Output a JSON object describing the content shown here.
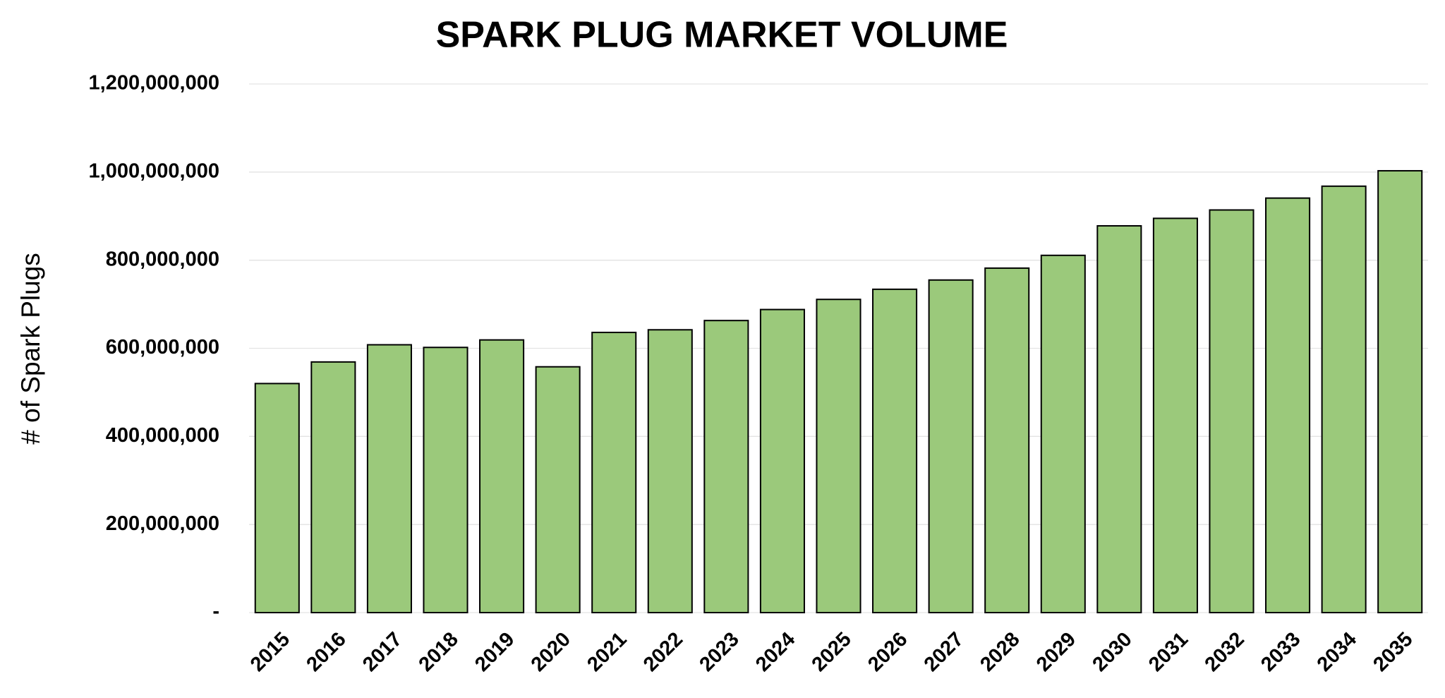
{
  "chart_data": {
    "type": "bar",
    "title": "SPARK PLUG MARKET VOLUME",
    "y_label": "# of Spark Plugs",
    "categories": [
      "2015",
      "2016",
      "2017",
      "2018",
      "2019",
      "2020",
      "2021",
      "2022",
      "2023",
      "2024",
      "2025",
      "2026",
      "2027",
      "2028",
      "2029",
      "2030",
      "2031",
      "2032",
      "2033",
      "2034",
      "2035"
    ],
    "values": [
      520000000,
      569000000,
      608000000,
      602000000,
      619000000,
      558000000,
      636000000,
      642000000,
      663000000,
      688000000,
      711000000,
      734000000,
      755000000,
      782000000,
      811000000,
      878000000,
      895000000,
      914000000,
      941000000,
      968000000,
      1003000000
    ],
    "color": "#9bc97b",
    "edge_color": "#000000",
    "ylim": [
      0,
      1200000000
    ],
    "yticks": [
      {
        "value": 0,
        "label": "-"
      },
      {
        "value": 200000000,
        "label": "200,000,000"
      },
      {
        "value": 400000000,
        "label": "400,000,000"
      },
      {
        "value": 600000000,
        "label": "600,000,000"
      },
      {
        "value": 800000000,
        "label": "800,000,000"
      },
      {
        "value": 1000000000,
        "label": "1,000,000,000"
      },
      {
        "value": 1200000000,
        "label": "1,200,000,000"
      }
    ],
    "grid": true
  }
}
